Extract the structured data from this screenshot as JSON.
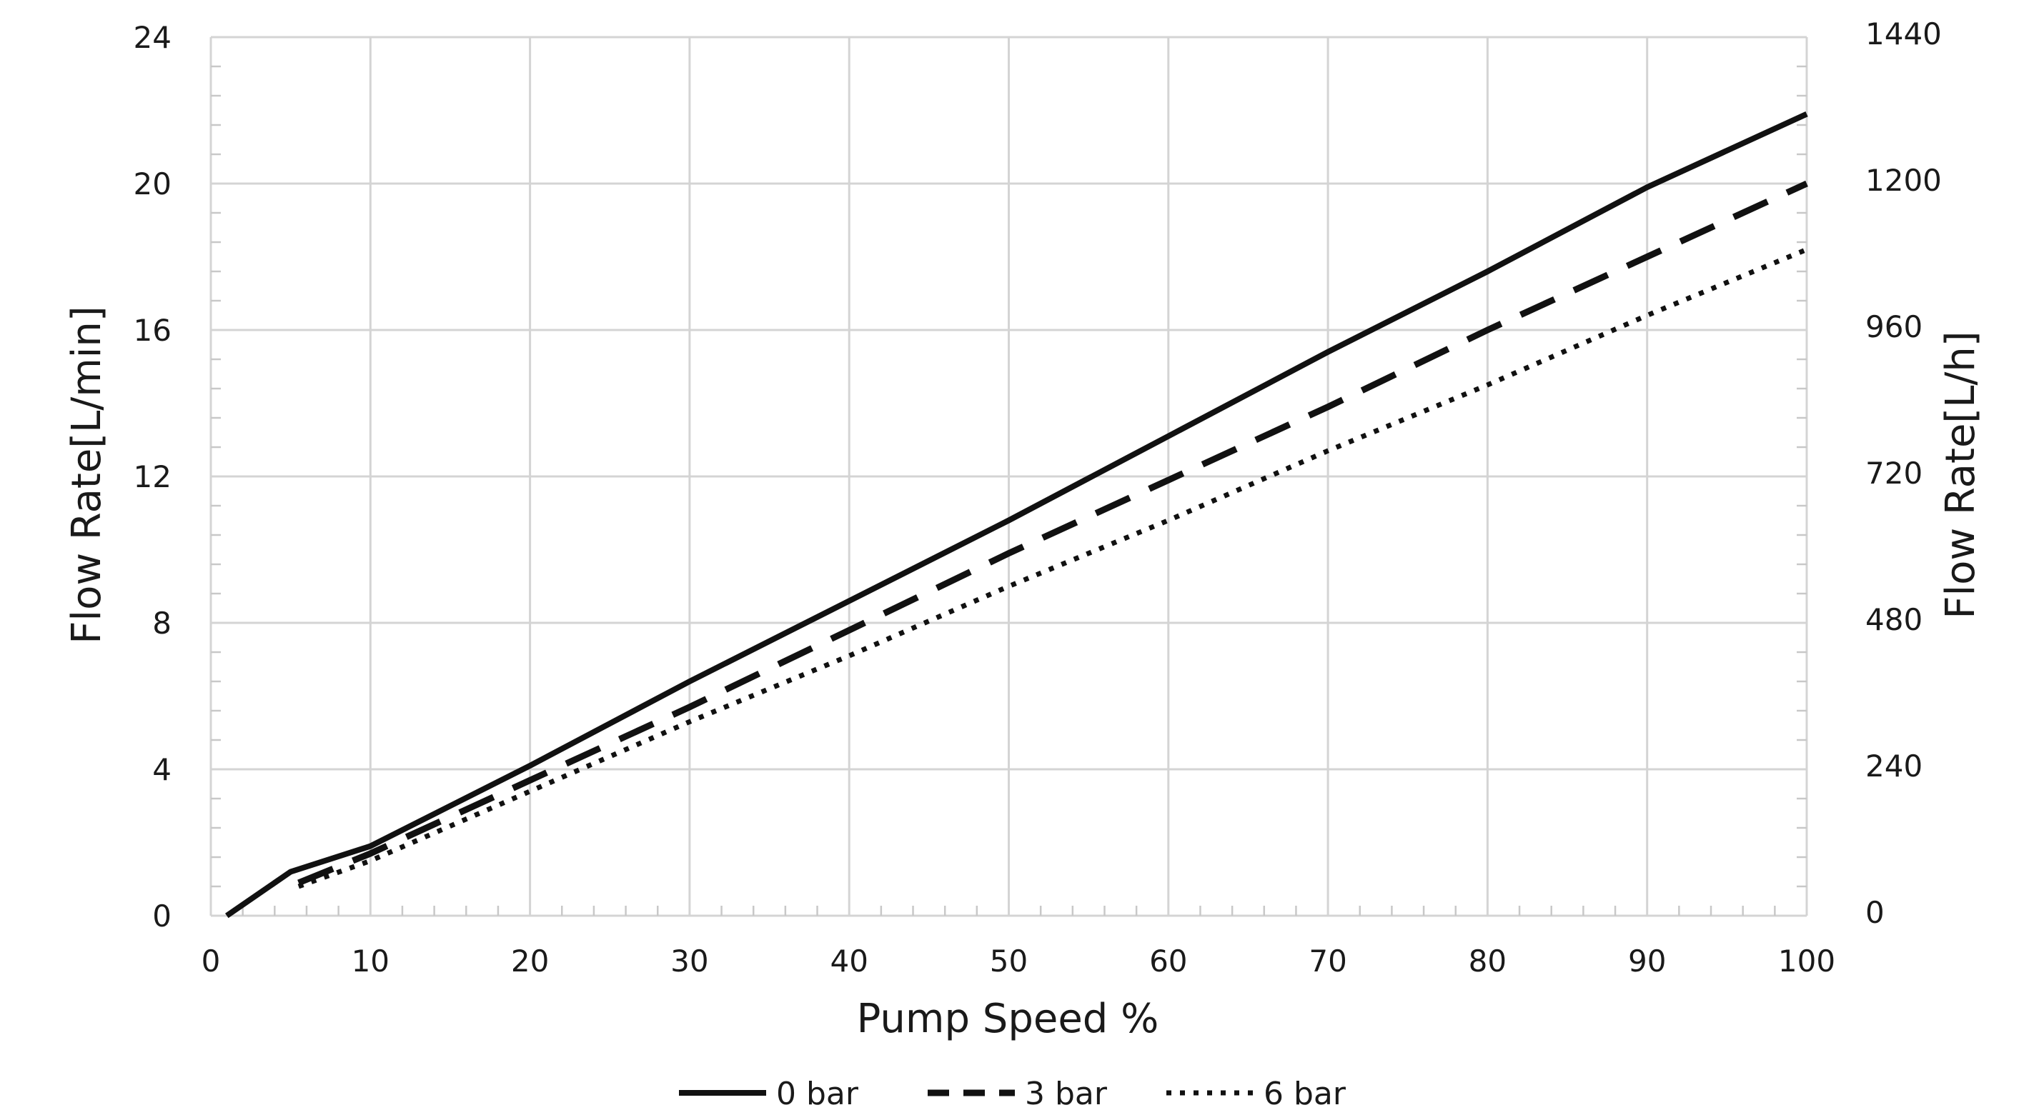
{
  "chart_data": {
    "type": "line",
    "title": "",
    "xlabel": "Pump Speed %",
    "ylabel": "Flow Rate[L/min]",
    "y2label": "Flow Rate[L/h]",
    "xlim": [
      0,
      100
    ],
    "ylim": [
      0,
      24
    ],
    "y2lim": [
      0,
      1440
    ],
    "xticks": [
      0,
      10,
      20,
      30,
      40,
      50,
      60,
      70,
      80,
      90,
      100
    ],
    "yticks": [
      0,
      4,
      8,
      12,
      16,
      20,
      24
    ],
    "y2ticks": [
      0,
      240,
      480,
      720,
      960,
      1200,
      1440
    ],
    "xtick_labels": [
      "0",
      "10",
      "20",
      "30",
      "40",
      "50",
      "60",
      "70",
      "80",
      "90",
      "100"
    ],
    "ytick_labels": [
      "0",
      "4",
      "8",
      "12",
      "16",
      "20",
      "24"
    ],
    "y2tick_labels": [
      "0",
      "240",
      "480",
      "720",
      "960",
      "1200",
      "1440"
    ],
    "grid": true,
    "legend_position": "bottom",
    "series": [
      {
        "name": "0 bar",
        "style": "solid",
        "color": "#111111",
        "x": [
          1,
          5,
          10,
          20,
          30,
          40,
          50,
          60,
          70,
          80,
          90,
          100
        ],
        "y": [
          0,
          1.2,
          1.9,
          4.1,
          6.4,
          8.6,
          10.8,
          13.1,
          15.4,
          17.6,
          19.9,
          21.9
        ]
      },
      {
        "name": "3 bar",
        "style": "dashed",
        "color": "#111111",
        "x": [
          5.5,
          10,
          20,
          30,
          40,
          50,
          60,
          70,
          80,
          90,
          100
        ],
        "y": [
          0.9,
          1.7,
          3.7,
          5.7,
          7.8,
          9.9,
          11.9,
          13.9,
          16.0,
          18.0,
          20.0
        ]
      },
      {
        "name": "6 bar",
        "style": "dotted",
        "color": "#111111",
        "x": [
          5.5,
          10,
          20,
          30,
          40,
          50,
          60,
          70,
          80,
          90,
          100
        ],
        "y": [
          0.8,
          1.5,
          3.4,
          5.3,
          7.1,
          9.0,
          10.8,
          12.7,
          14.5,
          16.4,
          18.2
        ]
      }
    ]
  }
}
